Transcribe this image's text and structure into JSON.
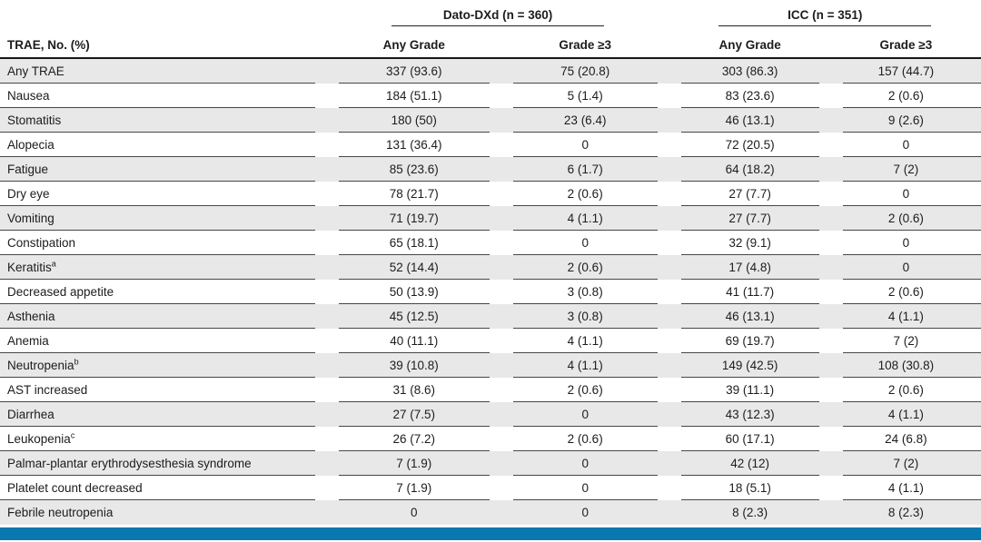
{
  "table": {
    "corner_header": "TRAE, No. (%)",
    "group_headers": [
      {
        "label": "Dato-DXd (n = 360)"
      },
      {
        "label": "ICC (n = 351)"
      }
    ],
    "sub_headers": [
      "Any Grade",
      "Grade ≥3",
      "Any Grade",
      "Grade ≥3"
    ],
    "rows": [
      {
        "label": "Any TRAE",
        "values": [
          "337 (93.6)",
          "75 (20.8)",
          "303 (86.3)",
          "157 (44.7)"
        ]
      },
      {
        "label": "Nausea",
        "values": [
          "184 (51.1)",
          "5 (1.4)",
          "83 (23.6)",
          "2 (0.6)"
        ]
      },
      {
        "label": "Stomatitis",
        "values": [
          "180 (50)",
          "23 (6.4)",
          "46 (13.1)",
          "9 (2.6)"
        ]
      },
      {
        "label": "Alopecia",
        "values": [
          "131 (36.4)",
          "0",
          "72 (20.5)",
          "0"
        ]
      },
      {
        "label": "Fatigue",
        "values": [
          "85 (23.6)",
          "6 (1.7)",
          "64 (18.2)",
          "7 (2)"
        ]
      },
      {
        "label": "Dry eye",
        "values": [
          "78 (21.7)",
          "2 (0.6)",
          "27 (7.7)",
          "0"
        ]
      },
      {
        "label": "Vomiting",
        "values": [
          "71 (19.7)",
          "4 (1.1)",
          "27 (7.7)",
          "2 (0.6)"
        ]
      },
      {
        "label": "Constipation",
        "values": [
          "65 (18.1)",
          "0",
          "32 (9.1)",
          "0"
        ]
      },
      {
        "label": "Keratitis",
        "sup": "a",
        "values": [
          "52 (14.4)",
          "2 (0.6)",
          "17 (4.8)",
          "0"
        ]
      },
      {
        "label": "Decreased appetite",
        "values": [
          "50 (13.9)",
          "3 (0.8)",
          "41 (11.7)",
          "2 (0.6)"
        ]
      },
      {
        "label": "Asthenia",
        "values": [
          "45 (12.5)",
          "3 (0.8)",
          "46 (13.1)",
          "4 (1.1)"
        ]
      },
      {
        "label": "Anemia",
        "values": [
          "40 (11.1)",
          "4 (1.1)",
          "69 (19.7)",
          "7 (2)"
        ]
      },
      {
        "label": "Neutropenia",
        "sup": "b",
        "values": [
          "39 (10.8)",
          "4 (1.1)",
          "149 (42.5)",
          "108 (30.8)"
        ]
      },
      {
        "label": "AST increased",
        "values": [
          "31 (8.6)",
          "2 (0.6)",
          "39 (11.1)",
          "2 (0.6)"
        ]
      },
      {
        "label": "Diarrhea",
        "values": [
          "27 (7.5)",
          "0",
          "43 (12.3)",
          "4 (1.1)"
        ]
      },
      {
        "label": "Leukopenia",
        "sup": "c",
        "values": [
          "26 (7.2)",
          "2 (0.6)",
          "60 (17.1)",
          "24 (6.8)"
        ]
      },
      {
        "label": "Palmar-plantar erythrodysesthesia syndrome",
        "values": [
          "7 (1.9)",
          "0",
          "42 (12)",
          "7 (2)"
        ]
      },
      {
        "label": "Platelet count decreased",
        "values": [
          "7 (1.9)",
          "0",
          "18 (5.1)",
          "4 (1.1)"
        ]
      },
      {
        "label": "Febrile neutropenia",
        "values": [
          "0",
          "0",
          "8 (2.3)",
          "8 (2.3)"
        ]
      }
    ]
  },
  "colors": {
    "accent_bar": "#0878af",
    "row_stripe": "#e8e8e8",
    "hairline": "#474747",
    "header_rule": "#161616"
  }
}
